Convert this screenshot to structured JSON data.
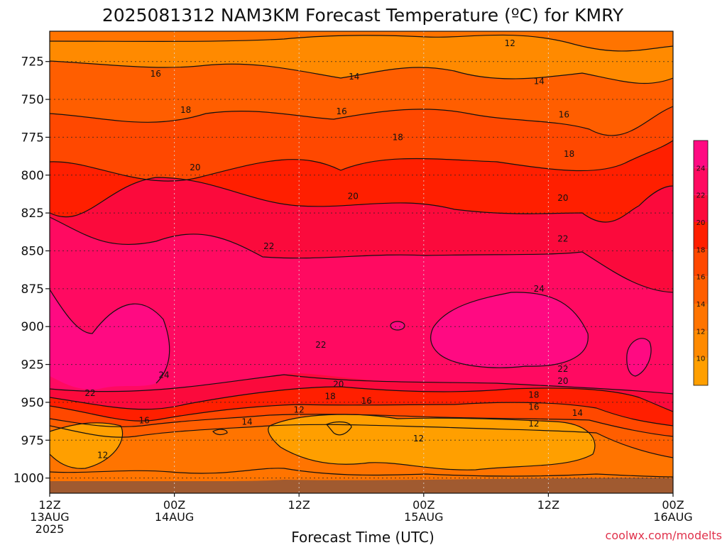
{
  "chart_data": {
    "type": "heatmap",
    "title": "2025081312 NAM3KM Forecast Temperature (ºC) for KMRY",
    "xlabel": "Forecast Time (UTC)",
    "ylabel": "",
    "y_ticks": [
      "725",
      "750",
      "775",
      "800",
      "825",
      "850",
      "875",
      "900",
      "925",
      "950",
      "975",
      "1000"
    ],
    "y_tick_values": [
      725,
      750,
      775,
      800,
      825,
      850,
      875,
      900,
      925,
      950,
      975,
      1000
    ],
    "ylim": [
      705,
      1010
    ],
    "x_ticks": [
      {
        "hour": 0,
        "line1": "12Z",
        "line2": "13AUG",
        "line3": "2025"
      },
      {
        "hour": 12,
        "line1": "00Z",
        "line2": "14AUG",
        "line3": ""
      },
      {
        "hour": 24,
        "line1": "12Z",
        "line2": "",
        "line3": ""
      },
      {
        "hour": 36,
        "line1": "00Z",
        "line2": "15AUG",
        "line3": ""
      },
      {
        "hour": 48,
        "line1": "12Z",
        "line2": "",
        "line3": ""
      },
      {
        "hour": 60,
        "line1": "00Z",
        "line2": "16AUG",
        "line3": ""
      }
    ],
    "xlim": [
      0,
      60
    ],
    "colorbar": {
      "levels": [
        8,
        10,
        12,
        14,
        16,
        18,
        20,
        22,
        24,
        26
      ],
      "labels": [
        "10",
        "12",
        "14",
        "16",
        "18",
        "20",
        "22",
        "24"
      ],
      "colors": [
        "#ff9f00",
        "#ff8a00",
        "#ff7400",
        "#ff5e00",
        "#ff4800",
        "#ff1f00",
        "#fb0a3c",
        "#ff0a61",
        "#ff0a82"
      ]
    },
    "grid": true,
    "contour_labels": [
      {
        "value": "12",
        "hour": 44.3,
        "p": 713
      },
      {
        "value": "16",
        "hour": 10.2,
        "p": 733
      },
      {
        "value": "14",
        "hour": 29.3,
        "p": 735
      },
      {
        "value": "14",
        "hour": 47.1,
        "p": 738
      },
      {
        "value": "18",
        "hour": 13.1,
        "p": 757
      },
      {
        "value": "16",
        "hour": 28.1,
        "p": 758
      },
      {
        "value": "16",
        "hour": 49.5,
        "p": 760
      },
      {
        "value": "18",
        "hour": 33.5,
        "p": 775
      },
      {
        "value": "18",
        "hour": 50.0,
        "p": 786
      },
      {
        "value": "20",
        "hour": 14.0,
        "p": 795
      },
      {
        "value": "20",
        "hour": 29.2,
        "p": 814
      },
      {
        "value": "20",
        "hour": 49.4,
        "p": 815
      },
      {
        "value": "22",
        "hour": 21.1,
        "p": 847
      },
      {
        "value": "22",
        "hour": 49.4,
        "p": 842
      },
      {
        "value": "24",
        "hour": 47.1,
        "p": 875
      },
      {
        "value": "22",
        "hour": 26.1,
        "p": 912
      },
      {
        "value": "24",
        "hour": 11.0,
        "p": 932
      },
      {
        "value": "22",
        "hour": 49.4,
        "p": 928
      },
      {
        "value": "20",
        "hour": 27.8,
        "p": 938
      },
      {
        "value": "20",
        "hour": 49.4,
        "p": 936
      },
      {
        "value": "22",
        "hour": 3.9,
        "p": 944
      },
      {
        "value": "18",
        "hour": 27.0,
        "p": 946
      },
      {
        "value": "16",
        "hour": 30.5,
        "p": 949
      },
      {
        "value": "18",
        "hour": 46.6,
        "p": 945
      },
      {
        "value": "12",
        "hour": 24.0,
        "p": 955
      },
      {
        "value": "16",
        "hour": 46.6,
        "p": 953
      },
      {
        "value": "14",
        "hour": 50.8,
        "p": 957
      },
      {
        "value": "16",
        "hour": 9.1,
        "p": 962
      },
      {
        "value": "14",
        "hour": 19.0,
        "p": 963
      },
      {
        "value": "12",
        "hour": 46.6,
        "p": 964
      },
      {
        "value": "12",
        "hour": 35.5,
        "p": 974
      },
      {
        "value": "12",
        "hour": 5.1,
        "p": 985
      }
    ]
  },
  "credit": "coolwx.com/modelts"
}
